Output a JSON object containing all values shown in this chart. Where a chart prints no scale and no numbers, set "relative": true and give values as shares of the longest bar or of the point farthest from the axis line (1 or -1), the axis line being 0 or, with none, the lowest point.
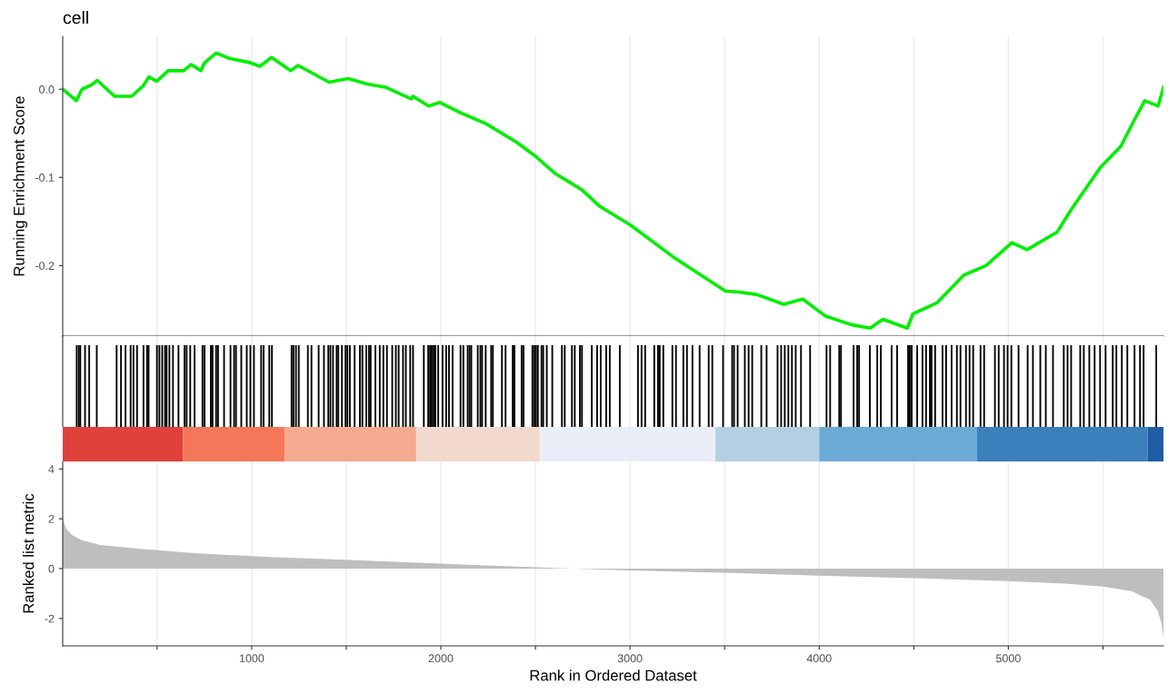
{
  "chart_data": [
    {
      "type": "line",
      "title": "cell",
      "ylabel": "Running Enrichment Score",
      "xlim": [
        1,
        5820
      ],
      "ylim": [
        -0.28,
        0.06
      ],
      "yticks": [
        {
          "value": 0,
          "label": "0.0"
        },
        -0.1,
        -0.2
      ],
      "xticks": [
        {
          "value": 500,
          "label": null
        },
        {
          "value": 1000,
          "label": null
        },
        {
          "value": 1500,
          "label": null
        },
        {
          "value": 2000,
          "label": null
        },
        {
          "value": 2500,
          "label": null
        },
        {
          "value": 3000,
          "label": null
        },
        {
          "value": 3500,
          "label": null
        },
        {
          "value": 4000,
          "label": null
        },
        {
          "value": 4500,
          "label": null
        },
        {
          "value": 5000,
          "label": null
        },
        {
          "value": 5500,
          "label": null
        }
      ],
      "tick_labels": "y",
      "grid": "x",
      "series": [
        {
          "color": "#00ee00",
          "x": [
            1,
            73,
            103,
            154,
            184,
            275,
            366,
            427,
            457,
            498,
            558,
            640,
            680,
            731,
            751,
            812,
            882,
            994,
            1043,
            1105,
            1206,
            1245,
            1409,
            1510,
            1611,
            1712,
            1843,
            1853,
            1935,
            1995,
            2097,
            2238,
            2400,
            2500,
            2601,
            2745,
            2841,
            3002,
            3240,
            3505,
            3577,
            3673,
            3813,
            3913,
            4031,
            4169,
            4269,
            4337,
            4466,
            4495,
            4625,
            4764,
            4882,
            5019,
            5099,
            5258,
            5337,
            5486,
            5594,
            5673,
            5721,
            5792,
            5820
          ],
          "values": [
            0,
            -0.013,
            0,
            0.005,
            0.01,
            -0.008,
            -0.008,
            0.004,
            0.014,
            0.009,
            0.021,
            0.021,
            0.028,
            0.021,
            0.03,
            0.041,
            0.035,
            0.03,
            0.026,
            0.036,
            0.021,
            0.027,
            0.008,
            0.012,
            0.006,
            0.002,
            -0.011,
            -0.008,
            -0.019,
            -0.015,
            -0.026,
            -0.039,
            -0.06,
            -0.076,
            -0.095,
            -0.114,
            -0.133,
            -0.154,
            -0.192,
            -0.229,
            -0.23,
            -0.233,
            -0.244,
            -0.238,
            -0.257,
            -0.267,
            -0.271,
            -0.261,
            -0.271,
            -0.255,
            -0.242,
            -0.211,
            -0.2,
            -0.174,
            -0.182,
            -0.162,
            -0.135,
            -0.089,
            -0.065,
            -0.032,
            -0.013,
            -0.019,
            0.002
          ]
        }
      ]
    },
    {
      "type": "bar",
      "relative": true,
      "xlim": [
        1,
        5820
      ],
      "xticks": [
        {
          "value": 500,
          "label": null
        },
        {
          "value": 1000,
          "label": null
        },
        {
          "value": 1500,
          "label": null
        },
        {
          "value": 2000,
          "label": null
        },
        {
          "value": 2500,
          "label": null
        },
        {
          "value": 3000,
          "label": null
        },
        {
          "value": 3500,
          "label": null
        },
        {
          "value": 4000,
          "label": null
        },
        {
          "value": 4500,
          "label": null
        },
        {
          "value": 5000,
          "label": null
        },
        {
          "value": 5500,
          "label": null
        }
      ],
      "tick_labels": false,
      "grid": "x",
      "series": [
        {
          "color": "#000000",
          "x": [
            75,
            86,
            94,
            119,
            141,
            181,
            286,
            309,
            333,
            360,
            375,
            394,
            428,
            447,
            455,
            499,
            512,
            527,
            542,
            550,
            565,
            584,
            613,
            645,
            656,
            675,
            698,
            740,
            751,
            784,
            793,
            812,
            822,
            854,
            888,
            907,
            917,
            945,
            974,
            993,
            1012,
            1050,
            1063,
            1093,
            1107,
            1211,
            1221,
            1234,
            1249,
            1297,
            1316,
            1354,
            1382,
            1405,
            1416,
            1430,
            1449,
            1458,
            1477,
            1496,
            1506,
            1519,
            1544,
            1572,
            1585,
            1606,
            1620,
            1629,
            1654,
            1677,
            1696,
            1715,
            1743,
            1762,
            1777,
            1800,
            1815,
            1838,
            1853,
            1910,
            1933,
            1943,
            1952,
            1962,
            1971,
            1986,
            2009,
            2028,
            2043,
            2062,
            2104,
            2119,
            2142,
            2152,
            2161,
            2195,
            2209,
            2218,
            2237,
            2266,
            2275,
            2323,
            2342,
            2380,
            2389,
            2427,
            2437,
            2484,
            2494,
            2503,
            2513,
            2532,
            2541,
            2560,
            2589,
            2640,
            2655,
            2693,
            2708,
            2735,
            2746,
            2798,
            2826,
            2845,
            2874,
            2893,
            2946,
            3042,
            3061,
            3080,
            3128,
            3148,
            3157,
            3176,
            3224,
            3243,
            3282,
            3301,
            3330,
            3368,
            3416,
            3435,
            3492,
            3540,
            3550,
            3569,
            3607,
            3627,
            3646,
            3694,
            3722,
            3780,
            3799,
            3818,
            3837,
            3856,
            3876,
            3904,
            3952,
            4039,
            4058,
            4106,
            4115,
            4182,
            4201,
            4211,
            4268,
            4307,
            4326,
            4383,
            4412,
            4470,
            4479,
            4489,
            4518,
            4546,
            4565,
            4585,
            4594,
            4613,
            4652,
            4671,
            4700,
            4728,
            4747,
            4776,
            4795,
            4814,
            4853,
            4872,
            4929,
            4949,
            4977,
            4996,
            5016,
            5054,
            5102,
            5130,
            5169,
            5198,
            5236,
            5293,
            5313,
            5332,
            5380,
            5399,
            5428,
            5456,
            5485,
            5514,
            5552,
            5571,
            5600,
            5629,
            5667,
            5696,
            5715,
            5782
          ],
          "values": [
            1,
            1,
            1,
            1,
            1,
            1,
            1,
            1,
            1,
            1,
            1,
            1,
            1,
            1,
            1,
            1,
            1,
            1,
            1,
            1,
            1,
            1,
            1,
            1,
            1,
            1,
            1,
            1,
            1,
            1,
            1,
            1,
            1,
            1,
            1,
            1,
            1,
            1,
            1,
            1,
            1,
            1,
            1,
            1,
            1,
            1,
            1,
            1,
            1,
            1,
            1,
            1,
            1,
            1,
            1,
            1,
            1,
            1,
            1,
            1,
            1,
            1,
            1,
            1,
            1,
            1,
            1,
            1,
            1,
            1,
            1,
            1,
            1,
            1,
            1,
            1,
            1,
            1,
            1,
            1,
            1,
            1,
            1,
            1,
            1,
            1,
            1,
            1,
            1,
            1,
            1,
            1,
            1,
            1,
            1,
            1,
            1,
            1,
            1,
            1,
            1,
            1,
            1,
            1,
            1,
            1,
            1,
            1,
            1,
            1,
            1,
            1,
            1,
            1,
            1,
            1,
            1,
            1,
            1,
            1,
            1,
            1,
            1,
            1,
            1,
            1,
            1,
            1,
            1,
            1,
            1,
            1,
            1,
            1,
            1,
            1,
            1,
            1,
            1,
            1,
            1,
            1,
            1,
            1,
            1,
            1,
            1,
            1,
            1,
            1,
            1,
            1,
            1,
            1,
            1,
            1,
            1,
            1,
            1,
            1,
            1,
            1,
            1,
            1,
            1,
            1,
            1,
            1,
            1,
            1,
            1,
            1,
            1,
            1,
            1,
            1,
            1,
            1,
            1,
            1,
            1,
            1,
            1,
            1,
            1,
            1,
            1,
            1,
            1,
            1,
            1,
            1,
            1,
            1,
            1,
            1,
            1,
            1,
            1,
            1,
            1,
            1,
            1,
            1,
            1,
            1,
            1,
            1,
            1,
            1,
            1,
            1,
            1,
            1,
            1,
            1,
            1,
            1
          ]
        }
      ]
    },
    {
      "type": "area",
      "xlabel": "Rank in Ordered Dataset",
      "ylabel": "Ranked list metric",
      "xlim": [
        1,
        5820
      ],
      "ylim": [
        -3.1,
        4.3
      ],
      "yticks": [
        -2,
        0,
        2,
        4
      ],
      "xticks": [
        {
          "value": 500,
          "label": null
        },
        1000,
        {
          "value": 1500,
          "label": null
        },
        2000,
        {
          "value": 2500,
          "label": null
        },
        3000,
        {
          "value": 3500,
          "label": null
        },
        4000,
        {
          "value": 4500,
          "label": null
        },
        5000,
        {
          "value": 5500,
          "label": null
        }
      ],
      "grid": "x",
      "series": [
        {
          "color": "#bebebe",
          "x": [
            1,
            20,
            50,
            100,
            200,
            400,
            700,
            1100,
            1500,
            2000,
            2500,
            2700,
            3000,
            3500,
            4000,
            4500,
            5000,
            5300,
            5500,
            5650,
            5750,
            5790,
            5810,
            5820
          ],
          "values": [
            2.0,
            1.6,
            1.35,
            1.15,
            0.95,
            0.8,
            0.62,
            0.46,
            0.35,
            0.2,
            0.05,
            0,
            -0.07,
            -0.17,
            -0.28,
            -0.38,
            -0.5,
            -0.6,
            -0.72,
            -0.9,
            -1.25,
            -1.7,
            -2.2,
            -2.8
          ]
        }
      ]
    }
  ]
}
